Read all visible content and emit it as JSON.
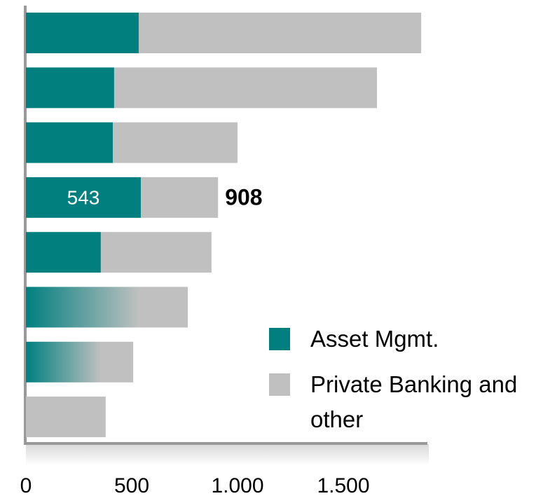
{
  "chart_data": {
    "type": "stacked-barh",
    "categories": [
      null,
      null,
      null,
      null,
      null,
      null,
      null,
      null
    ],
    "series": [
      {
        "name": "Asset Mgmt.",
        "color": "#007f7f",
        "values": [
          533,
          417,
          411,
          543,
          354,
          null,
          null,
          0
        ]
      },
      {
        "name": "Private Banking and other",
        "color": "#c0c0c0",
        "values": [
          1335,
          1242,
          589,
          365,
          523,
          765,
          507,
          377
        ]
      }
    ],
    "annotation": {
      "category_index": 3,
      "value": 908
    },
    "xlim": [
      0,
      1900
    ],
    "xticks": [
      0,
      500,
      {
        "value": 1000,
        "label": "1.000"
      },
      {
        "value": 1500,
        "label": "1.500"
      }
    ],
    "legend": "right"
  }
}
